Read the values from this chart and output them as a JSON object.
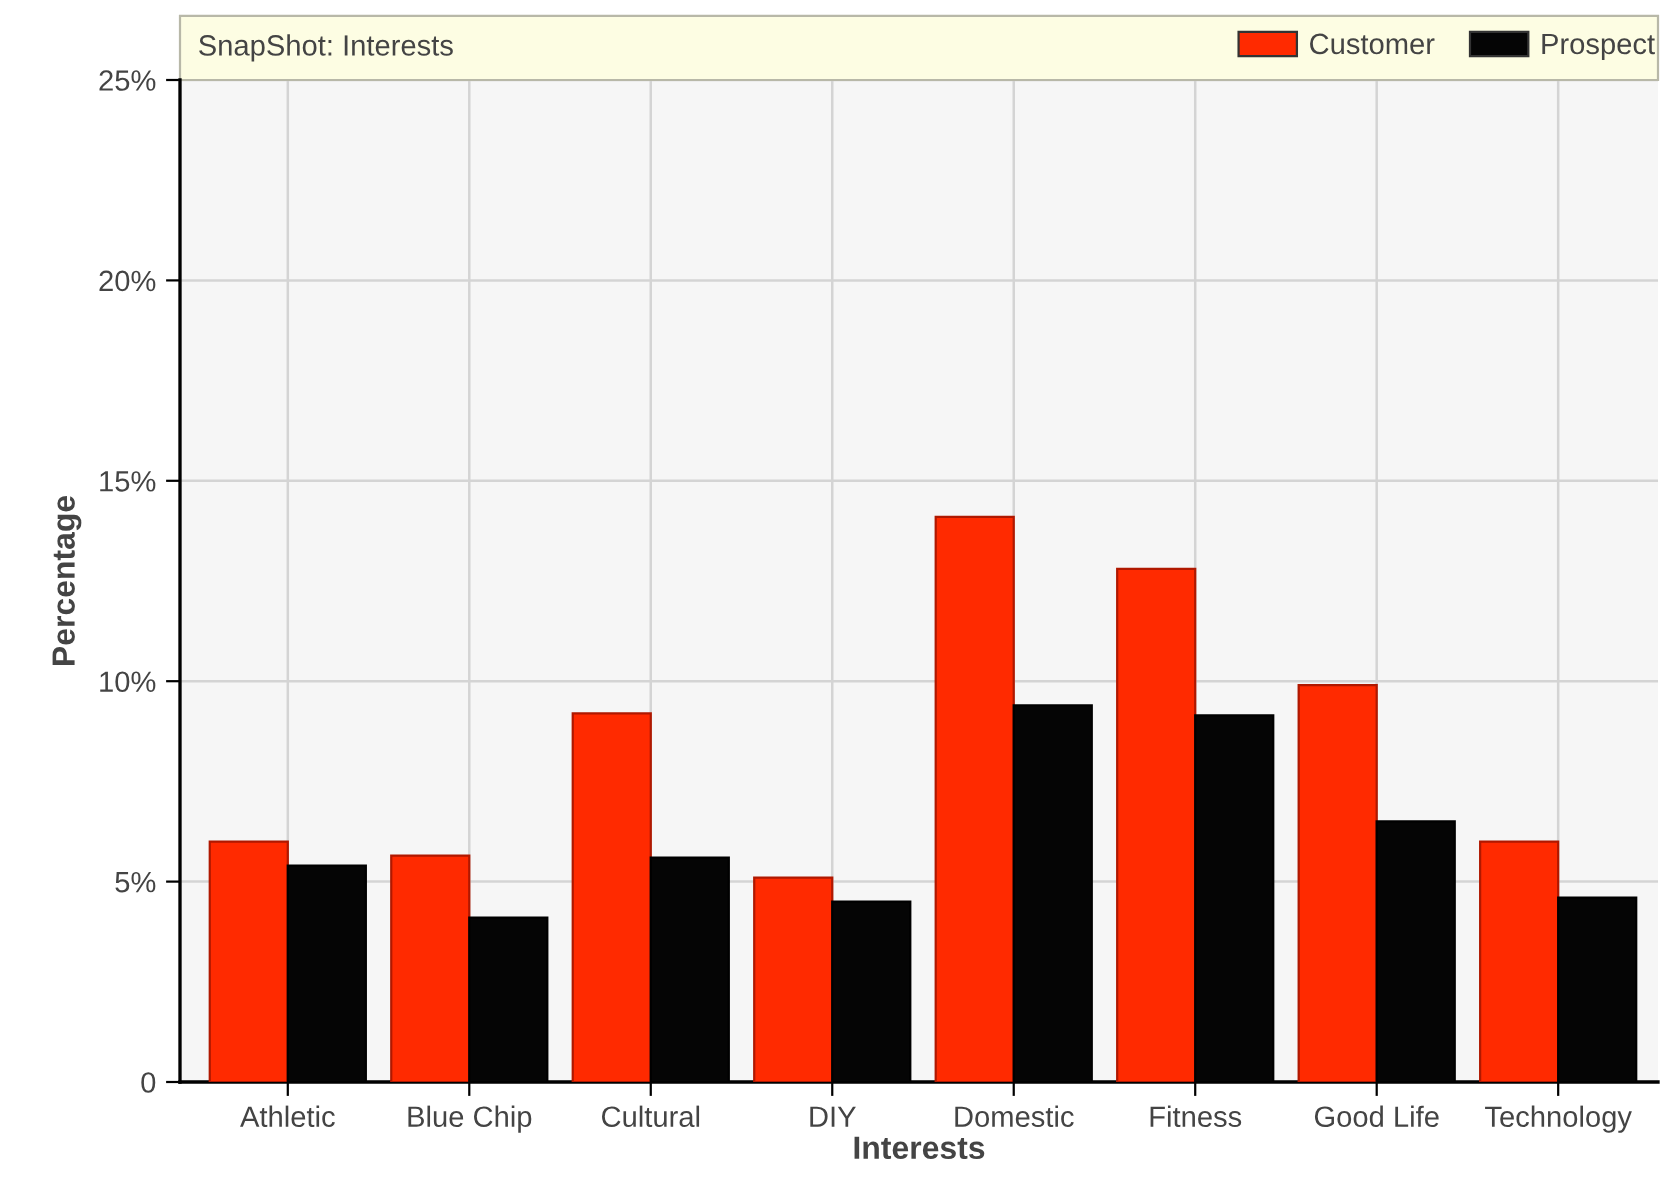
{
  "chart_data": {
    "type": "bar",
    "title": "SnapShot: Interests",
    "xlabel": "Interests",
    "ylabel": "Percentage",
    "categories": [
      "Athletic",
      "Blue Chip",
      "Cultural",
      "DIY",
      "Domestic",
      "Fitness",
      "Good Life",
      "Technology"
    ],
    "series": [
      {
        "name": "Customer",
        "color": "#ff2a00",
        "values": [
          6.0,
          5.65,
          9.2,
          5.1,
          14.1,
          12.8,
          9.9,
          6.0
        ]
      },
      {
        "name": "Prospect",
        "color": "#050505",
        "values": [
          5.4,
          4.1,
          5.6,
          4.5,
          9.4,
          9.15,
          6.5,
          4.6
        ]
      }
    ],
    "ylim": [
      0,
      25
    ],
    "yticks": [
      0,
      {
        "value": 5,
        "label": "5%"
      },
      {
        "value": 10,
        "label": "10%"
      },
      {
        "value": 15,
        "label": "15%"
      },
      {
        "value": 20,
        "label": "20%"
      },
      {
        "value": 25,
        "label": "25%"
      }
    ],
    "grid": true,
    "legend": "top right"
  }
}
